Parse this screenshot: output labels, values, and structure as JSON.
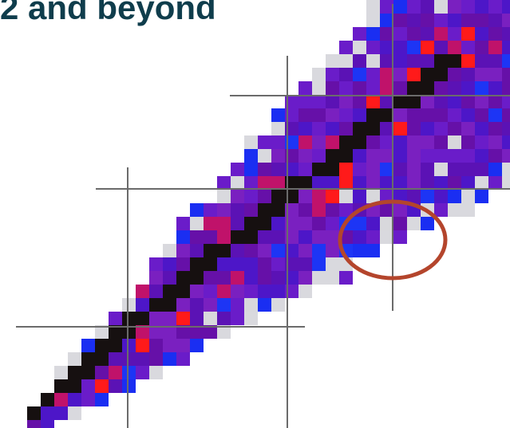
{
  "header": {
    "title": "2 and beyond"
  }
}
